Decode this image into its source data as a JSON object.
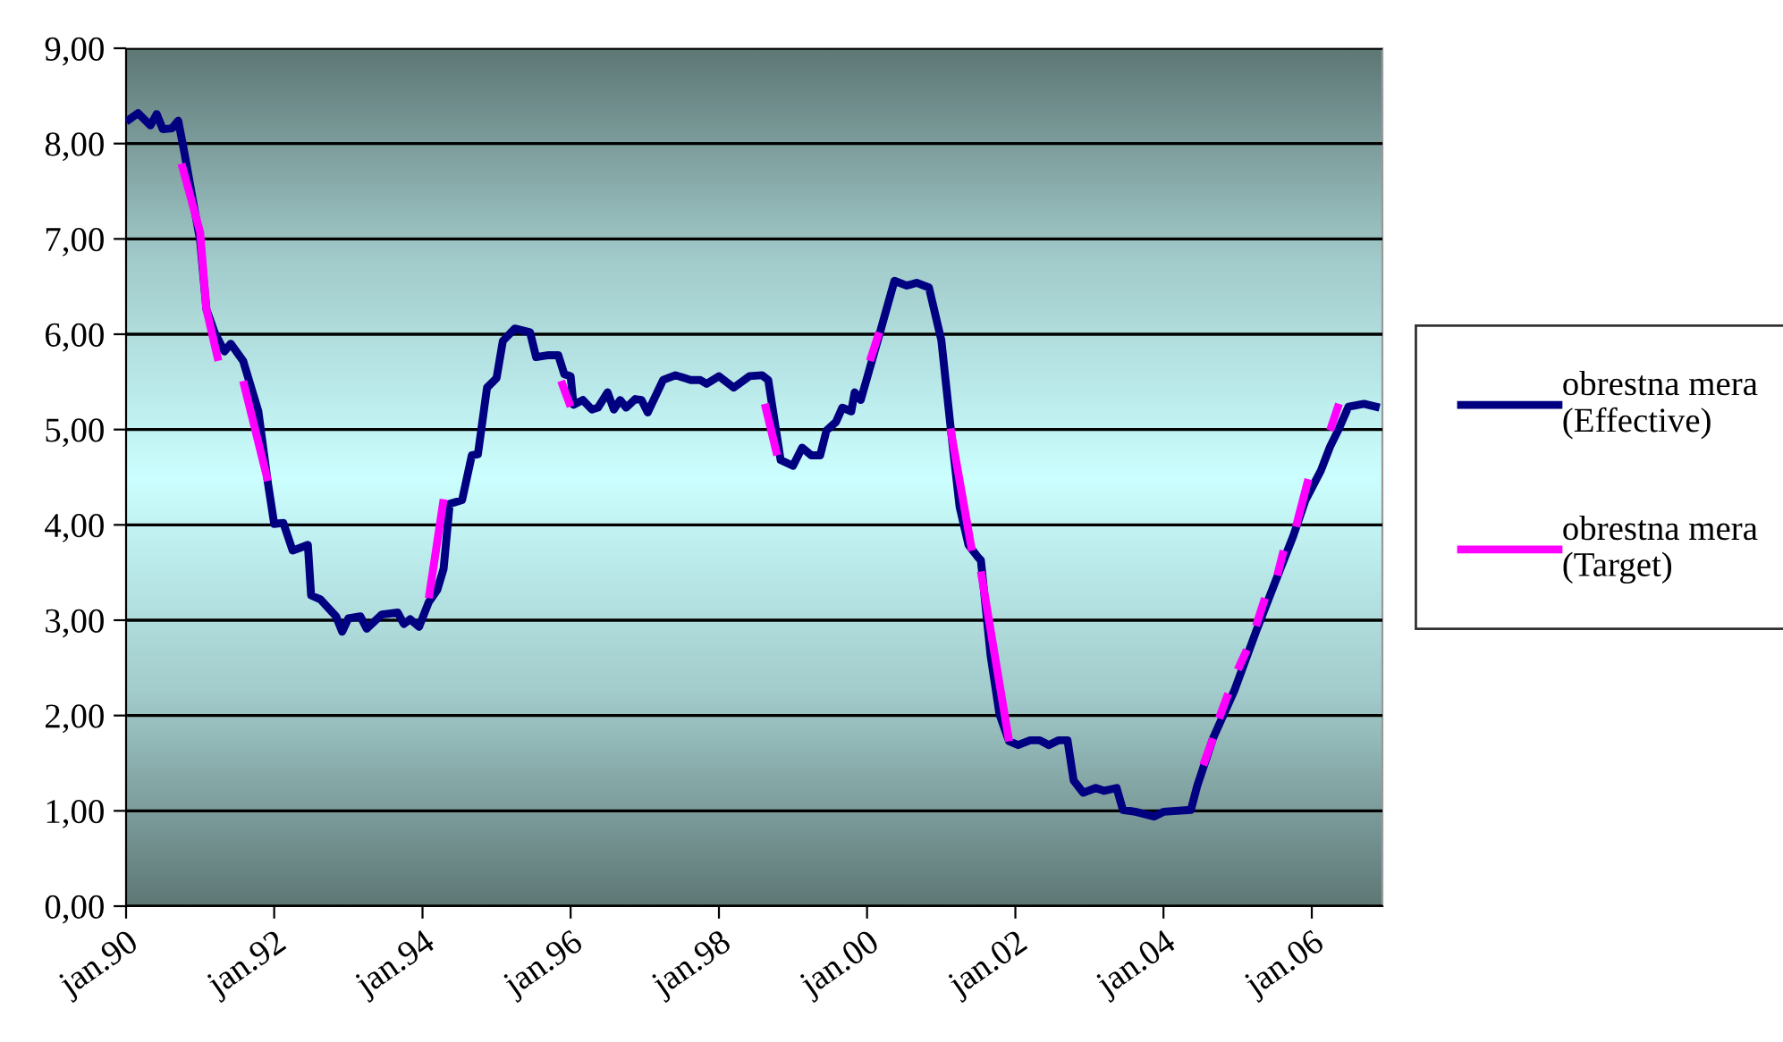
{
  "chart_data": {
    "type": "line",
    "xlim": [
      "1990-01-01",
      "2006-12-15"
    ],
    "xticks": [
      {
        "value": "1990-01-01",
        "label": "jan.90"
      },
      {
        "value": "1992-01-01",
        "label": "jan.92"
      },
      {
        "value": "1994-01-01",
        "label": "jan.94"
      },
      {
        "value": "1996-01-01",
        "label": "jan.96"
      },
      {
        "value": "1998-01-01",
        "label": "jan.98"
      },
      {
        "value": "2000-01-01",
        "label": "jan.00"
      },
      {
        "value": "2002-01-01",
        "label": "jan.02"
      },
      {
        "value": "2004-01-01",
        "label": "jan.04"
      },
      {
        "value": "2006-01-01",
        "label": "jan.06"
      }
    ],
    "ylim": [
      0,
      9
    ],
    "yticks": [
      {
        "value": 0,
        "label": "0,00"
      },
      {
        "value": 1,
        "label": "1,00"
      },
      {
        "value": 2,
        "label": "2,00"
      },
      {
        "value": 3,
        "label": "3,00"
      },
      {
        "value": 4,
        "label": "4,00"
      },
      {
        "value": 5,
        "label": "5,00"
      },
      {
        "value": 6,
        "label": "6,00"
      },
      {
        "value": 7,
        "label": "7,00"
      },
      {
        "value": 8,
        "label": "8,00"
      },
      {
        "value": 9,
        "label": "9,00"
      }
    ],
    "grid": "y",
    "legend": "right",
    "marker": "none",
    "line_style": "solid",
    "series": [
      {
        "name": "obrestna mera (Effective)",
        "color": "#000080",
        "x": [
          "1990-01-01",
          "1990-03-01",
          "1990-05-01",
          "1990-06-01",
          "1990-07-01",
          "1990-08-15",
          "1990-09-15",
          "1990-10-15",
          "1991-01-01",
          "1991-02-01",
          "1991-03-15",
          "1991-05-01",
          "1991-06-01",
          "1991-08-01",
          "1991-10-15",
          "1991-12-01",
          "1992-01-01",
          "1992-02-15",
          "1992-04-01",
          "1992-06-15",
          "1992-07-01",
          "1992-08-15",
          "1992-11-01",
          "1992-12-01",
          "1993-01-01",
          "1993-03-01",
          "1993-04-01",
          "1993-06-15",
          "1993-09-01",
          "1993-10-01",
          "1993-11-01",
          "1993-12-15",
          "1994-02-01",
          "1994-03-15",
          "1994-04-15",
          "1994-05-15",
          "1994-07-15",
          "1994-09-01",
          "1994-10-01",
          "1994-11-15",
          "1995-01-01",
          "1995-02-01",
          "1995-04-01",
          "1995-06-15",
          "1995-07-15",
          "1995-09-15",
          "1995-11-01",
          "1995-12-01",
          "1996-01-01",
          "1996-01-15",
          "1996-03-01",
          "1996-04-15",
          "1996-05-15",
          "1996-07-01",
          "1996-08-01",
          "1996-09-01",
          "1996-10-01",
          "1996-11-15",
          "1996-12-15",
          "1997-01-15",
          "1997-04-01",
          "1997-06-01",
          "1997-08-15",
          "1997-10-01",
          "1997-11-01",
          "1998-01-01",
          "1998-03-15",
          "1998-06-01",
          "1998-08-01",
          "1998-09-01",
          "1998-11-01",
          "1999-01-01",
          "1999-02-15",
          "1999-04-01",
          "1999-05-15",
          "1999-06-15",
          "1999-08-01",
          "1999-09-01",
          "1999-10-15",
          "1999-11-01",
          "1999-12-01",
          "2000-03-01",
          "2000-05-15",
          "2000-07-15",
          "2000-09-01",
          "2000-11-01",
          "2001-01-01",
          "2001-02-15",
          "2001-04-01",
          "2001-05-15",
          "2001-07-01",
          "2001-07-15",
          "2001-09-01",
          "2001-10-15",
          "2001-12-01",
          "2002-01-15",
          "2002-03-15",
          "2002-05-01",
          "2002-06-15",
          "2002-08-01",
          "2002-09-15",
          "2002-10-15",
          "2002-12-01",
          "2003-02-01",
          "2003-03-15",
          "2003-05-15",
          "2003-06-15",
          "2003-08-15",
          "2003-11-15",
          "2004-01-01",
          "2004-05-15",
          "2004-06-15",
          "2004-09-01",
          "2004-12-15",
          "2005-04-01",
          "2005-07-01",
          "2005-10-01",
          "2005-12-01",
          "2006-02-15",
          "2006-04-01",
          "2006-05-15",
          "2006-07-01",
          "2006-09-15",
          "2006-12-01"
        ],
        "values": [
          8.23,
          8.32,
          8.19,
          8.31,
          8.15,
          8.16,
          8.24,
          7.91,
          6.98,
          6.26,
          6.01,
          5.82,
          5.9,
          5.72,
          5.19,
          4.44,
          4.01,
          4.02,
          3.73,
          3.79,
          3.26,
          3.22,
          3.04,
          2.88,
          3.02,
          3.04,
          2.91,
          3.06,
          3.08,
          2.96,
          3.01,
          2.93,
          3.19,
          3.32,
          3.54,
          4.22,
          4.26,
          4.73,
          4.74,
          5.44,
          5.54,
          5.93,
          6.06,
          6.02,
          5.76,
          5.78,
          5.78,
          5.58,
          5.56,
          5.26,
          5.31,
          5.21,
          5.23,
          5.39,
          5.21,
          5.31,
          5.23,
          5.32,
          5.31,
          5.18,
          5.52,
          5.57,
          5.52,
          5.52,
          5.48,
          5.56,
          5.44,
          5.56,
          5.57,
          5.52,
          4.68,
          4.62,
          4.81,
          4.73,
          4.73,
          4.99,
          5.08,
          5.23,
          5.19,
          5.39,
          5.31,
          5.99,
          6.56,
          6.51,
          6.54,
          6.49,
          5.94,
          5.04,
          4.19,
          3.79,
          3.66,
          3.63,
          2.63,
          2.01,
          1.73,
          1.69,
          1.74,
          1.74,
          1.69,
          1.74,
          1.74,
          1.32,
          1.19,
          1.24,
          1.21,
          1.24,
          1.01,
          0.99,
          0.94,
          0.99,
          1.01,
          1.26,
          1.76,
          2.26,
          2.88,
          3.38,
          3.88,
          4.26,
          4.57,
          4.82,
          5.01,
          5.24,
          5.27,
          5.23
        ]
      },
      {
        "name": "obrestna mera (Target)",
        "color": "#ff00ff",
        "x": [
          "1990-10-01",
          "1991-01-01",
          "1991-02-01",
          "1991-04-01",
          "1991-06-01",
          "1991-08-01",
          "1991-12-01",
          "1993-01-01",
          "1994-02-01",
          "1994-04-15",
          "1995-01-01",
          "1995-11-15",
          "1996-01-01",
          "1997-01-01",
          "1998-08-15",
          "1998-10-15",
          "1999-07-01",
          "2000-01-15",
          "2000-03-01",
          "2000-08-01",
          "2001-02-15",
          "2001-06-01",
          "2001-07-05",
          "2001-07-15",
          "2001-12-01",
          "2003-01-01",
          "2004-07-15",
          "2004-09-01",
          "2004-09-15",
          "2004-10-01",
          "2004-11-15",
          "2004-12-10",
          "2005-01-01",
          "2005-02-15",
          "2005-03-10",
          "2005-04-01",
          "2005-05-15",
          "2005-06-10",
          "2005-07-15",
          "2005-08-15",
          "2005-09-10",
          "2005-10-15",
          "2005-12-15",
          "2006-02-01",
          "2006-04-01",
          "2006-05-15"
        ],
        "values": [
          7.79,
          7.07,
          6.26,
          5.72,
          null,
          5.51,
          4.46,
          null,
          3.23,
          4.27,
          null,
          5.51,
          5.24,
          null,
          5.27,
          4.73,
          null,
          5.72,
          6.02,
          null,
          5.01,
          3.73,
          null,
          3.51,
          1.73,
          null,
          1.48,
          1.76,
          null,
          1.97,
          2.23,
          null,
          2.48,
          2.69,
          null,
          2.94,
          3.23,
          null,
          3.47,
          3.73,
          null,
          3.98,
          4.48,
          null,
          4.99,
          5.27
        ]
      }
    ]
  }
}
